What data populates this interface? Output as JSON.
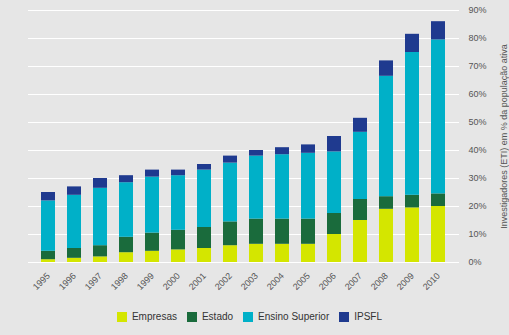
{
  "chart_data": {
    "type": "bar",
    "stacked": true,
    "categories": [
      "1995",
      "1996",
      "1997",
      "1998",
      "1999",
      "2000",
      "2001",
      "2002",
      "2003",
      "2004",
      "2005",
      "2006",
      "2007",
      "2008",
      "2009",
      "2010"
    ],
    "series": [
      {
        "name": "Empresas",
        "color": "#d4e600",
        "values": [
          1.0,
          1.5,
          2.0,
          3.5,
          4.0,
          4.5,
          5.0,
          6.0,
          6.5,
          6.5,
          6.5,
          10.0,
          15.0,
          19.0,
          19.5,
          20.0
        ]
      },
      {
        "name": "Estado",
        "color": "#1a6b3c",
        "values": [
          3.0,
          3.5,
          4.0,
          5.5,
          6.5,
          7.0,
          7.5,
          8.5,
          9.0,
          9.0,
          9.0,
          7.5,
          7.5,
          4.5,
          4.5,
          4.5
        ]
      },
      {
        "name": "Ensino Superior",
        "color": "#00b0c8",
        "values": [
          18.0,
          19.0,
          20.5,
          19.5,
          20.0,
          19.5,
          20.5,
          21.0,
          22.5,
          23.0,
          23.5,
          22.0,
          24.0,
          43.0,
          51.0,
          55.0
        ]
      },
      {
        "name": "IPSFL",
        "color": "#1f3a8f",
        "values": [
          3.0,
          3.0,
          3.5,
          2.5,
          2.5,
          2.0,
          2.0,
          2.5,
          2.0,
          2.5,
          3.0,
          5.5,
          5.0,
          5.5,
          6.5,
          6.5
        ]
      }
    ],
    "ylabel": "Investigadores (ETI) em % da população ativa",
    "ylim": [
      0,
      90
    ],
    "yticks": [
      {
        "value": 0,
        "label": "0%"
      },
      {
        "value": 10,
        "label": "10%"
      },
      {
        "value": 20,
        "label": "20%"
      },
      {
        "value": 30,
        "label": "30%"
      },
      {
        "value": 40,
        "label": "40%"
      },
      {
        "value": 50,
        "label": "50%"
      },
      {
        "value": 60,
        "label": "60%"
      },
      {
        "value": 70,
        "label": "70%"
      },
      {
        "value": 80,
        "label": "80%"
      },
      {
        "value": 90,
        "label": "90%"
      }
    ],
    "grid": true,
    "legend": "bottom"
  }
}
